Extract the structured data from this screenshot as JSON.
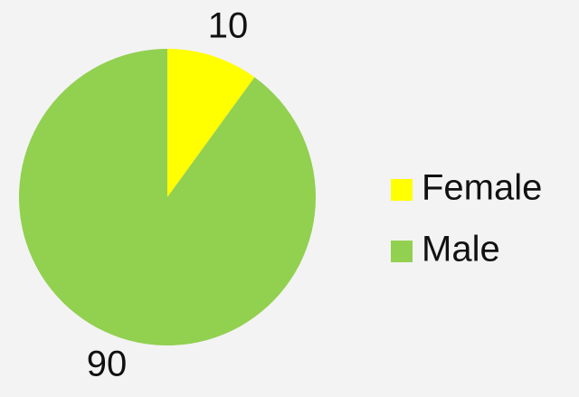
{
  "chart_data": {
    "type": "pie",
    "categories": [
      "Female",
      "Male"
    ],
    "values": [
      10,
      90
    ],
    "colors": [
      "#ffff00",
      "#92d050"
    ],
    "legend": "right"
  }
}
